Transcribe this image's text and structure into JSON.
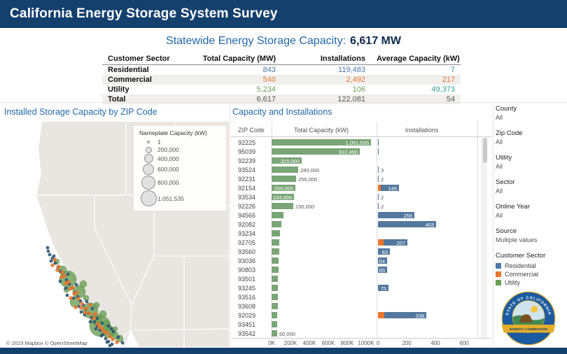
{
  "header": {
    "title": "California Energy Storage System Survey"
  },
  "summary": {
    "label": "Statewide Energy Storage Capacity:",
    "value": "6,617 MW"
  },
  "sector_table": {
    "columns": [
      "Customer Sector",
      "Total Capacity (MW)",
      "Installations",
      "Average Capacity (kW)"
    ],
    "rows": [
      {
        "sector": "Residential",
        "capacity": "843",
        "installations": "119,483",
        "avg": "7",
        "colors": {
          "capacity": "#4e79a7",
          "installations": "#4e79a7",
          "avg": "#2f9e94"
        },
        "shaded": false
      },
      {
        "sector": "Commercial",
        "capacity": "540",
        "installations": "2,492",
        "avg": "217",
        "colors": {
          "capacity": "#e8762d",
          "installations": "#e8762d",
          "avg": "#e8762d"
        },
        "shaded": true
      },
      {
        "sector": "Utility",
        "capacity": "5,234",
        "installations": "106",
        "avg": "49,373",
        "colors": {
          "capacity": "#6aa056",
          "installations": "#6aa056",
          "avg": "#2f9e94"
        },
        "shaded": false
      },
      {
        "sector": "Total",
        "capacity": "6,617",
        "installations": "122,081",
        "avg": "54",
        "colors": {
          "capacity": "#555555",
          "installations": "#555555",
          "avg": "#555555"
        },
        "shaded": true
      }
    ]
  },
  "map_panel": {
    "title": "Installed Storage Capacity by ZIP Code",
    "legend": {
      "title": "Nameplate Capacity (kW)",
      "entries": [
        "1",
        "200,000",
        "400,000",
        "600,000",
        "800,000",
        "1,051,535"
      ]
    },
    "attribution": "© 2023 Mapbox © OpenStreetMap",
    "dots": {
      "utility": [
        [
          92,
          225,
          12
        ],
        [
          108,
          243,
          9
        ],
        [
          124,
          270,
          11
        ],
        [
          138,
          292,
          15
        ],
        [
          102,
          258,
          7
        ],
        [
          84,
          212,
          6
        ],
        [
          132,
          282,
          8
        ],
        [
          150,
          300,
          9
        ],
        [
          114,
          232,
          5
        ],
        [
          142,
          275,
          5
        ],
        [
          158,
          305,
          6
        ],
        [
          76,
          200,
          4
        ],
        [
          90,
          240,
          4
        ],
        [
          133,
          262,
          4
        ],
        [
          147,
          288,
          4
        ],
        [
          160,
          296,
          3
        ],
        [
          166,
          310,
          5
        ],
        [
          118,
          252,
          4
        ]
      ],
      "commercial": [
        [
          70,
          205
        ],
        [
          77,
          212
        ],
        [
          83,
          222
        ],
        [
          89,
          231
        ],
        [
          95,
          239
        ],
        [
          101,
          246
        ],
        [
          107,
          253
        ],
        [
          112,
          260
        ],
        [
          118,
          267
        ],
        [
          123,
          274
        ],
        [
          129,
          281
        ],
        [
          135,
          289
        ],
        [
          141,
          296
        ],
        [
          148,
          302
        ],
        [
          87,
          220
        ],
        [
          93,
          229
        ],
        [
          99,
          237
        ],
        [
          105,
          244
        ],
        [
          79,
          207
        ],
        [
          73,
          197
        ],
        [
          111,
          266
        ],
        [
          117,
          273
        ],
        [
          137,
          293
        ],
        [
          144,
          300
        ],
        [
          152,
          307
        ],
        [
          84,
          215
        ],
        [
          124,
          262
        ],
        [
          131,
          275
        ],
        [
          156,
          311
        ],
        [
          162,
          315
        ],
        [
          96,
          252
        ],
        [
          103,
          265
        ]
      ],
      "residential": [
        [
          66,
          190
        ],
        [
          70,
          195
        ],
        [
          74,
          202
        ],
        [
          78,
          208
        ],
        [
          82,
          214
        ],
        [
          86,
          220
        ],
        [
          90,
          226
        ],
        [
          94,
          232
        ],
        [
          98,
          238
        ],
        [
          102,
          244
        ],
        [
          106,
          250
        ],
        [
          110,
          256
        ],
        [
          114,
          262
        ],
        [
          118,
          268
        ],
        [
          122,
          274
        ],
        [
          126,
          280
        ],
        [
          130,
          286
        ],
        [
          134,
          292
        ],
        [
          138,
          298
        ],
        [
          142,
          304
        ],
        [
          146,
          310
        ],
        [
          150,
          314
        ],
        [
          64,
          185
        ],
        [
          68,
          199
        ],
        [
          81,
          228
        ],
        [
          89,
          238
        ],
        [
          100,
          252
        ],
        [
          108,
          264
        ],
        [
          116,
          276
        ],
        [
          124,
          286
        ],
        [
          132,
          296
        ],
        [
          140,
          306
        ],
        [
          148,
          315
        ],
        [
          155,
          318
        ],
        [
          92,
          218
        ],
        [
          104,
          233
        ],
        [
          119,
          257
        ],
        [
          134,
          281
        ],
        [
          150,
          292
        ],
        [
          157,
          300
        ],
        [
          164,
          308
        ],
        [
          170,
          316
        ],
        [
          63,
          180
        ],
        [
          72,
          192
        ],
        [
          91,
          248
        ],
        [
          111,
          272
        ],
        [
          127,
          267
        ],
        [
          141,
          288
        ],
        [
          154,
          296
        ],
        [
          152,
          320
        ]
      ]
    }
  },
  "chart_panel": {
    "title": "Capacity and Installations",
    "columns": {
      "zip": "ZIP Code",
      "capacity": "Total Capacity (kW)",
      "installations": "Installations"
    }
  },
  "chart_data": {
    "type": "bar",
    "title": "Capacity and Installations",
    "capacity_axis": {
      "ticks": [
        "0K",
        "200K",
        "400K",
        "600K",
        "800K",
        "1000K"
      ],
      "max": 1051535
    },
    "installations_axis": {
      "ticks": [
        "0",
        "200",
        "400",
        "600"
      ],
      "max": 650
    },
    "rows": [
      {
        "zip": "92225",
        "capacity": 1051535,
        "capacity_label": "1,051,535",
        "capacity_label_inside": true,
        "installations": 2,
        "installations_commercial": 0,
        "installations_label": "",
        "installations_label_inside": false
      },
      {
        "zip": "95039",
        "capacity": 932490,
        "capacity_label": "932,490",
        "capacity_label_inside": true,
        "installations": 1,
        "installations_commercial": 0,
        "installations_label": "",
        "installations_label_inside": false
      },
      {
        "zip": "92239",
        "capacity": 315000,
        "capacity_label": "315,000",
        "capacity_label_inside": true,
        "installations": 0,
        "installations_commercial": 0,
        "installations_label": "",
        "installations_label_inside": false
      },
      {
        "zip": "93524",
        "capacity": 280000,
        "capacity_label": "280,000",
        "capacity_label_inside": false,
        "installations": 3,
        "installations_commercial": 0,
        "installations_label": "3",
        "installations_label_inside": false
      },
      {
        "zip": "92231",
        "capacity": 256000,
        "capacity_label": "256,000",
        "capacity_label_inside": false,
        "installations": 2,
        "installations_commercial": 0,
        "installations_label": "2",
        "installations_label_inside": false
      },
      {
        "zip": "92154",
        "capacity": 250000,
        "capacity_label": "250,000",
        "capacity_label_inside": true,
        "installations": 146,
        "installations_commercial": 20,
        "installations_label": "146",
        "installations_label_inside": true
      },
      {
        "zip": "93534",
        "capacity": 234000,
        "capacity_label": "234,000",
        "capacity_label_inside": true,
        "installations": 2,
        "installations_commercial": 0,
        "installations_label": "2",
        "installations_label_inside": false
      },
      {
        "zip": "92226",
        "capacity": 230000,
        "capacity_label": "230,000",
        "capacity_label_inside": false,
        "installations": 2,
        "installations_commercial": 0,
        "installations_label": "2",
        "installations_label_inside": false
      },
      {
        "zip": "94565",
        "capacity": 125000,
        "capacity_label": "",
        "capacity_label_inside": false,
        "installations": 256,
        "installations_commercial": 0,
        "installations_label": "256",
        "installations_label_inside": true
      },
      {
        "zip": "92082",
        "capacity": 100000,
        "capacity_label": "",
        "capacity_label_inside": false,
        "installations": 403,
        "installations_commercial": 0,
        "installations_label": "403",
        "installations_label_inside": true
      },
      {
        "zip": "93234",
        "capacity": 90000,
        "capacity_label": "",
        "capacity_label_inside": false,
        "installations": 0,
        "installations_commercial": 0,
        "installations_label": "",
        "installations_label_inside": false
      },
      {
        "zip": "92705",
        "capacity": 85000,
        "capacity_label": "",
        "capacity_label_inside": false,
        "installations": 207,
        "installations_commercial": 40,
        "installations_label": "207",
        "installations_label_inside": true
      },
      {
        "zip": "93560",
        "capacity": 80000,
        "capacity_label": "",
        "capacity_label_inside": false,
        "installations": 83,
        "installations_commercial": 0,
        "installations_label": "83",
        "installations_label_inside": true
      },
      {
        "zip": "93036",
        "capacity": 75000,
        "capacity_label": "",
        "capacity_label_inside": false,
        "installations": 64,
        "installations_commercial": 0,
        "installations_label": "64",
        "installations_label_inside": true
      },
      {
        "zip": "90803",
        "capacity": 72000,
        "capacity_label": "",
        "capacity_label_inside": false,
        "installations": 65,
        "installations_commercial": 0,
        "installations_label": "65",
        "installations_label_inside": true
      },
      {
        "zip": "93501",
        "capacity": 70000,
        "capacity_label": "",
        "capacity_label_inside": false,
        "installations": 0,
        "installations_commercial": 0,
        "installations_label": "",
        "installations_label_inside": false
      },
      {
        "zip": "93245",
        "capacity": 67000,
        "capacity_label": "",
        "capacity_label_inside": false,
        "installations": 75,
        "installations_commercial": 0,
        "installations_label": "75",
        "installations_label_inside": true
      },
      {
        "zip": "93516",
        "capacity": 66000,
        "capacity_label": "",
        "capacity_label_inside": false,
        "installations": 0,
        "installations_commercial": 0,
        "installations_label": "",
        "installations_label_inside": false
      },
      {
        "zip": "93608",
        "capacity": 65000,
        "capacity_label": "",
        "capacity_label_inside": false,
        "installations": 0,
        "installations_commercial": 0,
        "installations_label": "",
        "installations_label_inside": false
      },
      {
        "zip": "92029",
        "capacity": 62000,
        "capacity_label": "",
        "capacity_label_inside": false,
        "installations": 338,
        "installations_commercial": 45,
        "installations_label": "338",
        "installations_label_inside": true
      },
      {
        "zip": "93451",
        "capacity": 61000,
        "capacity_label": "",
        "capacity_label_inside": false,
        "installations": 0,
        "installations_commercial": 0,
        "installations_label": "",
        "installations_label_inside": false
      },
      {
        "zip": "93542",
        "capacity": 60000,
        "capacity_label": "60,000",
        "capacity_label_inside": false,
        "installations": 0,
        "installations_commercial": 0,
        "installations_label": "",
        "installations_label_inside": false
      }
    ]
  },
  "filters": [
    {
      "label": "County",
      "value": "All"
    },
    {
      "label": "Zip Code",
      "value": "All"
    },
    {
      "label": "Utility",
      "value": "All"
    },
    {
      "label": "Sector",
      "value": "All"
    },
    {
      "label": "Online Year",
      "value": "All"
    },
    {
      "label": "Source",
      "value": "Multiple values"
    }
  ],
  "sector_legend": {
    "title": "Customer Sector",
    "items": [
      {
        "label": "Residential",
        "color": "#4e79a7"
      },
      {
        "label": "Commercial",
        "color": "#e8762d"
      },
      {
        "label": "Utility",
        "color": "#6aa056"
      }
    ]
  },
  "logo": {
    "ring_text": "STATE OF CALIFORNIA",
    "banner_text": "ENERGY COMMISSION"
  },
  "colors": {
    "header_bar": "#14406e",
    "panel_title": "#2368a8",
    "capacity_bar": "#7aa577",
    "installations_bar": "#53779e"
  }
}
